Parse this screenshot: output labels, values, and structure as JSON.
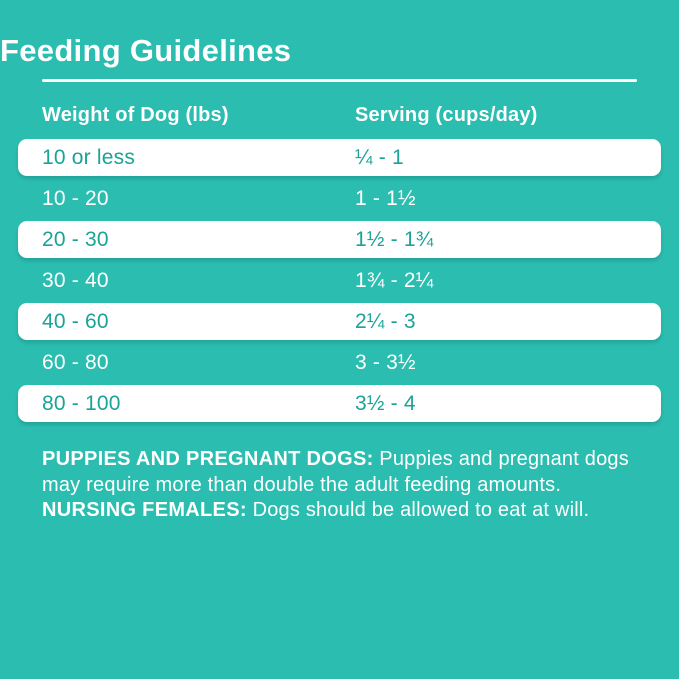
{
  "colors": {
    "background": "#2ABDB0",
    "highlight_row_bg": "#FFFFFF",
    "highlight_row_text": "#1AA396",
    "text": "#FFFFFF"
  },
  "title": "Feeding Guidelines",
  "table": {
    "headers": [
      "Weight of Dog (lbs)",
      "Serving (cups/day)"
    ],
    "rows": [
      {
        "weight": "10 or less",
        "serving": "¼ - 1",
        "highlight": true
      },
      {
        "weight": "10 - 20",
        "serving": "1 - 1½",
        "highlight": false
      },
      {
        "weight": "20 - 30",
        "serving": "1½ - 1¾",
        "highlight": true
      },
      {
        "weight": "30 - 40",
        "serving": "1¾ - 2¼",
        "highlight": false
      },
      {
        "weight": "40 - 60",
        "serving": "2¼ - 3",
        "highlight": true
      },
      {
        "weight": "60 - 80",
        "serving": "3 - 3½",
        "highlight": false
      },
      {
        "weight": "80 - 100",
        "serving": "3½ - 4",
        "highlight": true
      }
    ]
  },
  "notes": {
    "label1": "PUPPIES AND PREGNANT DOGS:",
    "text1": " Puppies and pregnant dogs may require more than double the adult feeding amounts. ",
    "label2": "NURSING FEMALES:",
    "text2": " Dogs should be allowed to eat at will."
  }
}
